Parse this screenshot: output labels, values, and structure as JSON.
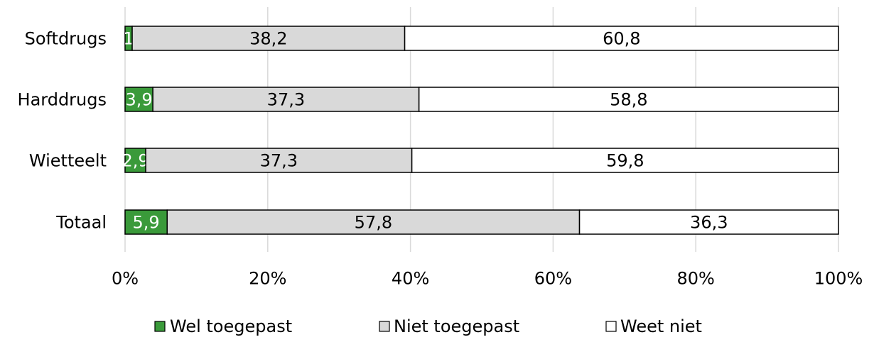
{
  "chart_data": {
    "type": "bar",
    "orientation": "horizontal",
    "stacked": true,
    "percent_stacked": true,
    "categories": [
      "Softdrugs",
      "Harddrugs",
      "Wietteelt",
      "Totaal"
    ],
    "series": [
      {
        "name": "Wel toegepast",
        "values": [
          1,
          3.9,
          2.9,
          5.9
        ],
        "labels": [
          "1",
          "3,9",
          "2,9",
          "5,9"
        ],
        "color": "#3a9a3a",
        "label_color": "#ffffff"
      },
      {
        "name": "Niet toegepast",
        "values": [
          38.2,
          37.3,
          37.3,
          57.8
        ],
        "labels": [
          "38,2",
          "37,3",
          "37,3",
          "57,8"
        ],
        "color": "#d9d9d9",
        "label_color": "#000000"
      },
      {
        "name": "Weet niet",
        "values": [
          60.8,
          58.8,
          59.8,
          36.3
        ],
        "labels": [
          "60,8",
          "58,8",
          "59,8",
          "36,3"
        ],
        "color": "#ffffff",
        "label_color": "#000000"
      }
    ],
    "x_ticks": [
      "0%",
      "20%",
      "40%",
      "60%",
      "80%",
      "100%"
    ],
    "xlim": [
      0,
      100
    ],
    "grid": "vertical",
    "legend_position": "bottom",
    "title": "",
    "xlabel": "",
    "ylabel": ""
  },
  "colors": {
    "grid": "#d9d9d9",
    "border": "#000000"
  }
}
